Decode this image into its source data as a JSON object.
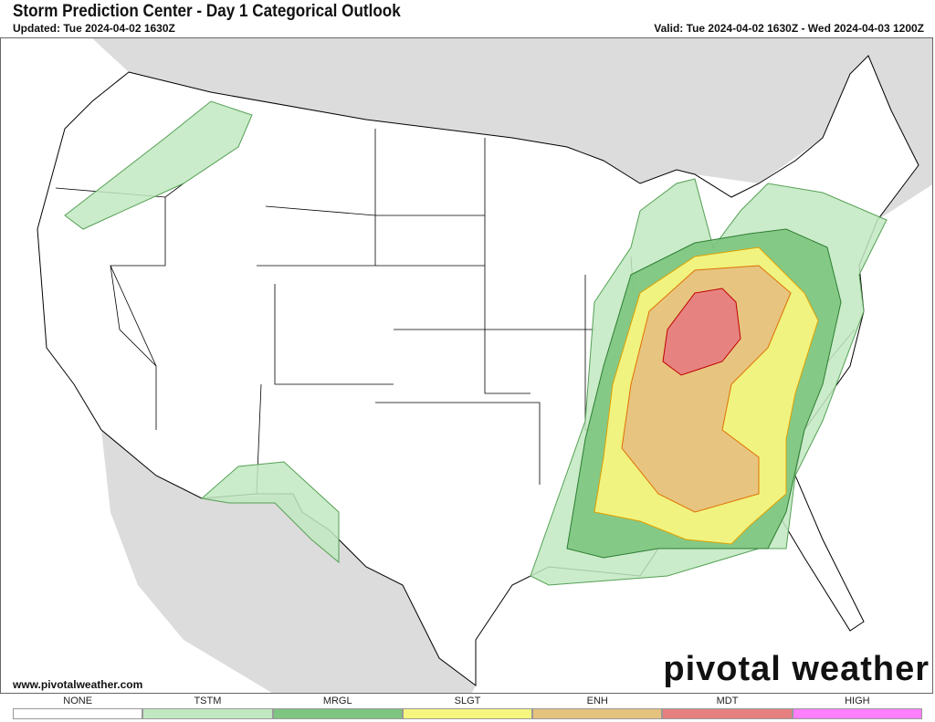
{
  "header": {
    "title": "Storm Prediction Center - Day 1 Categorical Outlook",
    "updated": "Updated: Tue 2024-04-02 1630Z",
    "valid": "Valid: Tue 2024-04-02 1630Z - Wed 2024-04-03 1200Z"
  },
  "footer": {
    "site": "www.pivotalweather.com",
    "logo": "pivotal weather"
  },
  "legend": [
    {
      "label": "NONE",
      "color": "#ffffff"
    },
    {
      "label": "TSTM",
      "color": "#c1e9c1"
    },
    {
      "label": "MRGL",
      "color": "#7dc580"
    },
    {
      "label": "SLGT",
      "color": "#f6f67f"
    },
    {
      "label": "ENH",
      "color": "#e6c27f"
    },
    {
      "label": "MDT",
      "color": "#e67f7f"
    },
    {
      "label": "HIGH",
      "color": "#ff7fff"
    }
  ],
  "map": {
    "region": "CONUS",
    "risk_areas": [
      "TSTM",
      "MRGL",
      "SLGT",
      "ENH",
      "MDT"
    ],
    "colors": {
      "foreign_land": "#dcdcdc",
      "water": "#ffffff",
      "us_land": "#ffffff",
      "roads": "#3333ff",
      "borders": "#000000"
    }
  }
}
